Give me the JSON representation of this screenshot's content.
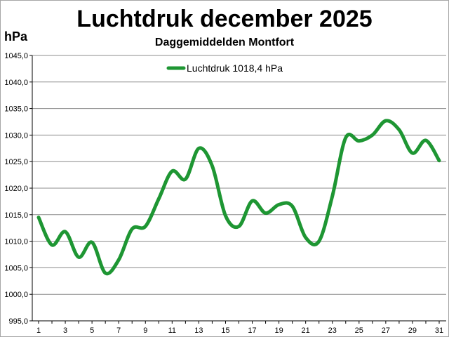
{
  "chart_data": {
    "type": "line",
    "title": "Luchtdruk december 2025",
    "subtitle": "Daggemiddelden Montfort",
    "ylabel": "hPa",
    "xlabel": "",
    "ylim": [
      995,
      1045
    ],
    "yticks": [
      "995,0",
      "1000,0",
      "1005,0",
      "1010,0",
      "1015,0",
      "1020,0",
      "1025,0",
      "1030,0",
      "1035,0",
      "1040,0",
      "1045,0"
    ],
    "xticks": [
      "1",
      "3",
      "5",
      "7",
      "9",
      "11",
      "13",
      "15",
      "17",
      "19",
      "21",
      "23",
      "25",
      "27",
      "29",
      "31"
    ],
    "grid": true,
    "legend_position": "top-left",
    "series": [
      {
        "name": "Luchtdruk 1018,4 hPa",
        "color": "#1e9633",
        "x": [
          1,
          2,
          3,
          4,
          5,
          6,
          7,
          8,
          9,
          10,
          11,
          12,
          13,
          14,
          15,
          16,
          17,
          18,
          19,
          20,
          21,
          22,
          23,
          24,
          25,
          26,
          27,
          28,
          29,
          30,
          31
        ],
        "values": [
          1014.5,
          1009.3,
          1011.8,
          1007.0,
          1009.8,
          1004.0,
          1006.5,
          1012.3,
          1012.8,
          1018.0,
          1023.2,
          1021.7,
          1027.5,
          1024.2,
          1014.8,
          1012.8,
          1017.6,
          1015.3,
          1016.9,
          1016.6,
          1010.7,
          1010.0,
          1018.5,
          1029.5,
          1028.9,
          1030.0,
          1032.7,
          1031.0,
          1026.6,
          1029.0,
          1025.2
        ]
      }
    ]
  }
}
